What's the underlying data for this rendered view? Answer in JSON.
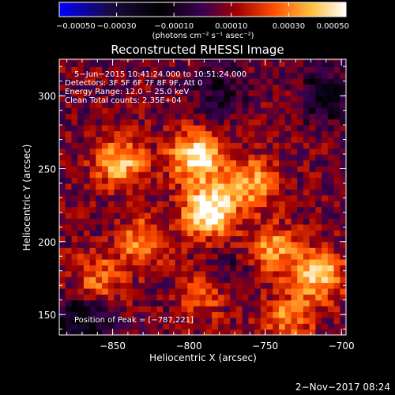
{
  "chart_data": {
    "type": "heatmap",
    "title": "Reconstructed RHESSI Image",
    "xlabel": "Heliocentric X (arcsec)",
    "ylabel": "Heliocentric Y (arcsec)",
    "xlim": [
      -885,
      -697
    ],
    "ylim": [
      136,
      325
    ],
    "x_ticks": [
      -850,
      -800,
      -750,
      -700
    ],
    "x_tick_labels": [
      "−850",
      "−800",
      "−750",
      "−700"
    ],
    "y_ticks": [
      150,
      200,
      250,
      300
    ],
    "y_tick_labels": [
      "150",
      "200",
      "250",
      "300"
    ],
    "colorbar": {
      "range": [
        -0.0005,
        0.0005
      ],
      "ticks": [
        -0.0005,
        -0.0003,
        -0.0001,
        0.0001,
        0.0003,
        0.0005
      ],
      "tick_labels": [
        "−0.00050",
        "−0.00030",
        "−0.00010",
        "0.00010",
        "0.00030",
        "0.00050"
      ],
      "units_label": "(photons cm⁻² s⁻¹ asec⁻²)",
      "colormap": [
        "#0000ff",
        "#1a0a40",
        "#000000",
        "#3a0050",
        "#a00000",
        "#ff5000",
        "#ffc040",
        "#ffffff"
      ]
    },
    "annotations": [
      "5−Jun−2015 10:41:24.000 to 10:51:24.000",
      "Detectors: 3F 5F 6F 7F 8F 9F, Att 0",
      "Energy Range: 12.0 − 25.0 keV",
      "Clean    Total counts: 2.35E+04"
    ],
    "peak_label": "Position of Peak = [−787,221]",
    "peak": {
      "x": -787,
      "y": 221
    },
    "hotspots": [
      {
        "x": -787,
        "y": 221,
        "value": 0.00048
      },
      {
        "x": -795,
        "y": 258,
        "value": 0.00044
      },
      {
        "x": -845,
        "y": 255,
        "value": 0.00034
      },
      {
        "x": -760,
        "y": 240,
        "value": 0.0003
      },
      {
        "x": -745,
        "y": 195,
        "value": 0.00028
      },
      {
        "x": -715,
        "y": 178,
        "value": 0.00036
      },
      {
        "x": -830,
        "y": 200,
        "value": 0.00026
      },
      {
        "x": -860,
        "y": 175,
        "value": 0.00022
      },
      {
        "x": -790,
        "y": 165,
        "value": 0.0002
      },
      {
        "x": -735,
        "y": 148,
        "value": 0.00024
      }
    ],
    "coldspots": [
      {
        "x": -870,
        "y": 145,
        "value": -0.0003
      },
      {
        "x": -710,
        "y": 300,
        "value": -0.00022
      },
      {
        "x": -780,
        "y": 305,
        "value": -0.00015
      },
      {
        "x": -775,
        "y": 178,
        "value": -0.00012
      }
    ]
  },
  "footer": {
    "date": "2−Nov−2017 08:24"
  }
}
